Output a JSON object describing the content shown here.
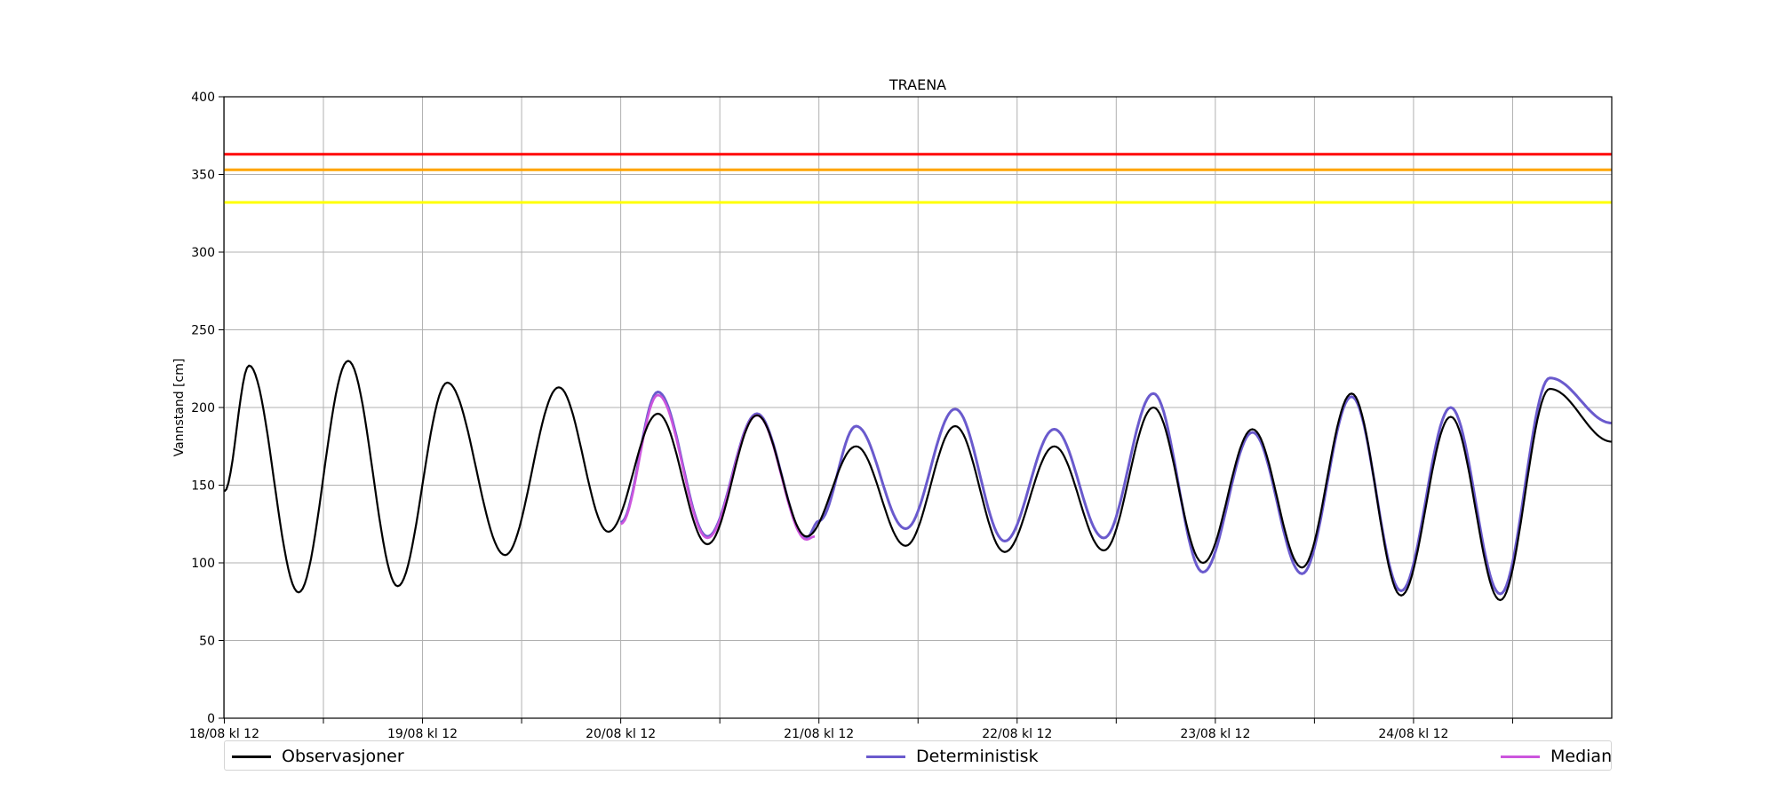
{
  "chart_data": {
    "type": "line",
    "title": "TRAENA",
    "xlabel": "",
    "ylabel": "Vannstand [cm]",
    "ylim": [
      0,
      400
    ],
    "yticks": [
      0,
      50,
      100,
      150,
      200,
      250,
      300,
      350,
      400
    ],
    "xlim": [
      -0.05,
      168
    ],
    "x_unit": "hours from 18/08 kl 12",
    "xtick_positions": [
      0,
      12,
      24,
      36,
      48,
      60,
      72,
      84,
      96,
      108,
      120,
      132,
      144,
      156
    ],
    "xtick_labels": [
      "18/08 kl 12",
      "",
      "19/08 kl 12",
      "",
      "20/08 kl 12",
      "",
      "21/08 kl 12",
      "",
      "22/08 kl 12",
      "",
      "23/08 kl 12",
      "",
      "24/08 kl 12",
      ""
    ],
    "grid": true,
    "legend": {
      "placement": "bottom",
      "entries": [
        "Observasjoner",
        "Deterministisk",
        "Median"
      ]
    },
    "threshold_lines": [
      {
        "y": 363,
        "color": "#ff0000"
      },
      {
        "y": 353,
        "color": "#ffa500"
      },
      {
        "y": 332,
        "color": "#ffff00"
      }
    ],
    "series": [
      {
        "name": "Observasjoner",
        "color": "#000000",
        "points": [
          [
            0,
            146
          ],
          [
            3,
            227
          ],
          [
            9,
            81
          ],
          [
            15,
            230
          ],
          [
            21,
            85
          ],
          [
            27,
            216
          ],
          [
            34,
            105
          ],
          [
            40.5,
            213
          ],
          [
            46.5,
            120
          ],
          [
            52.5,
            196
          ],
          [
            58.5,
            112
          ],
          [
            64.5,
            195
          ],
          [
            70.5,
            117
          ],
          [
            76.5,
            175
          ],
          [
            82.5,
            111
          ],
          [
            88.5,
            188
          ],
          [
            94.5,
            107
          ],
          [
            100.5,
            175
          ],
          [
            106.5,
            108
          ],
          [
            112.5,
            200
          ],
          [
            118.5,
            100
          ],
          [
            124.5,
            186
          ],
          [
            130.5,
            97
          ],
          [
            136.5,
            209
          ],
          [
            142.5,
            79
          ],
          [
            148.5,
            194
          ],
          [
            154.5,
            76
          ],
          [
            160.5,
            212
          ],
          [
            168,
            178
          ]
        ]
      },
      {
        "name": "Deterministisk",
        "color": "#6a5acd",
        "points": [
          [
            48,
            126
          ],
          [
            52.5,
            210
          ],
          [
            58.5,
            117
          ],
          [
            64.5,
            196
          ],
          [
            70.5,
            116
          ],
          [
            72,
            127
          ],
          [
            76.5,
            188
          ],
          [
            82.5,
            122
          ],
          [
            88.5,
            199
          ],
          [
            94.5,
            114
          ],
          [
            100.5,
            186
          ],
          [
            106.5,
            116
          ],
          [
            112.5,
            209
          ],
          [
            118.5,
            94
          ],
          [
            124.5,
            184
          ],
          [
            130.5,
            93
          ],
          [
            136.5,
            207
          ],
          [
            142.5,
            82
          ],
          [
            148.5,
            200
          ],
          [
            154.5,
            80
          ],
          [
            160.5,
            219
          ],
          [
            168,
            190
          ]
        ]
      },
      {
        "name": "Median",
        "color": "#cc55dd",
        "points": [
          [
            48,
            125
          ],
          [
            52.5,
            208
          ],
          [
            58.5,
            116
          ],
          [
            64.5,
            195
          ],
          [
            70.5,
            115
          ],
          [
            71.5,
            117
          ]
        ]
      }
    ]
  }
}
